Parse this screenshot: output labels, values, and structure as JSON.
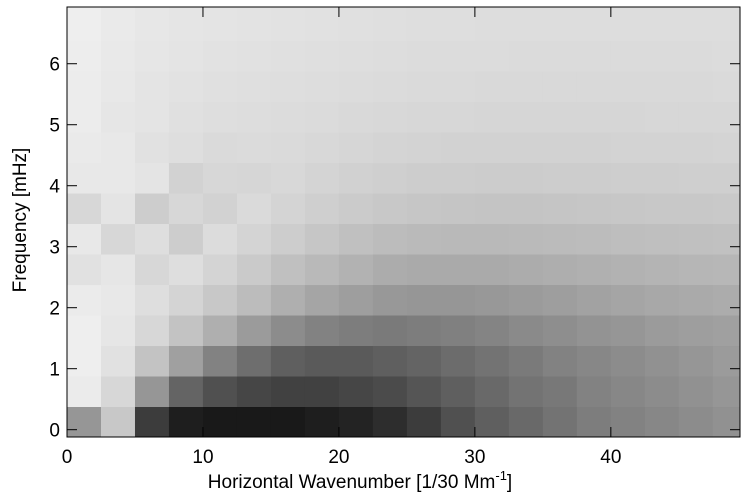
{
  "chart_data": {
    "type": "heatmap",
    "xlabel": [
      "Horizontal Wavenumber [1/30 Mm",
      "-1",
      "]"
    ],
    "ylabel": "Frequency [mHz]",
    "xlim": [
      0,
      49.5
    ],
    "ylim": [
      -0.12,
      6.93
    ],
    "xticks": [
      0,
      10,
      20,
      30,
      40
    ],
    "yticks": [
      0,
      1,
      2,
      3,
      4,
      5,
      6
    ],
    "x_bins": [
      0,
      2.5,
      5,
      7.5,
      10,
      12.5,
      15,
      17.5,
      20,
      22.5,
      25,
      27.5,
      30,
      32.5,
      35,
      37.5,
      40,
      42.5,
      45,
      47.5,
      49.5
    ],
    "y_bins": [
      -0.12,
      0.38,
      0.88,
      1.38,
      1.88,
      2.38,
      2.88,
      3.38,
      3.88,
      4.38,
      4.88,
      5.38,
      5.88,
      6.38,
      6.93
    ],
    "values": [
      [
        150,
        200,
        60,
        30,
        25,
        25,
        25,
        30,
        35,
        45,
        60,
        80,
        95,
        105,
        115,
        125,
        130,
        135,
        140,
        145
      ],
      [
        235,
        215,
        150,
        100,
        80,
        70,
        65,
        65,
        70,
        75,
        85,
        95,
        105,
        115,
        120,
        130,
        135,
        140,
        145,
        150
      ],
      [
        238,
        225,
        195,
        160,
        130,
        110,
        95,
        90,
        90,
        95,
        100,
        108,
        115,
        122,
        130,
        135,
        140,
        145,
        150,
        155
      ],
      [
        238,
        230,
        215,
        195,
        175,
        155,
        140,
        130,
        125,
        122,
        125,
        128,
        132,
        138,
        142,
        147,
        150,
        155,
        158,
        160
      ],
      [
        235,
        232,
        222,
        212,
        200,
        188,
        175,
        165,
        158,
        152,
        150,
        150,
        152,
        155,
        158,
        162,
        165,
        168,
        170,
        172
      ],
      [
        225,
        230,
        215,
        222,
        212,
        202,
        192,
        185,
        178,
        172,
        170,
        170,
        170,
        172,
        174,
        176,
        178,
        180,
        182,
        183
      ],
      [
        232,
        215,
        222,
        205,
        220,
        212,
        205,
        198,
        192,
        188,
        186,
        185,
        185,
        186,
        187,
        188,
        190,
        191,
        192,
        193
      ],
      [
        215,
        228,
        205,
        215,
        210,
        218,
        212,
        207,
        203,
        200,
        198,
        197,
        196,
        196,
        197,
        198,
        199,
        200,
        200,
        201
      ],
      [
        232,
        232,
        228,
        210,
        215,
        214,
        216,
        212,
        209,
        207,
        205,
        205,
        204,
        204,
        205,
        205,
        206,
        206,
        207,
        207
      ],
      [
        234,
        232,
        225,
        222,
        218,
        219,
        218,
        216,
        214,
        212,
        211,
        210,
        210,
        210,
        210,
        210,
        211,
        211,
        211,
        212
      ],
      [
        236,
        230,
        228,
        224,
        222,
        221,
        220,
        219,
        217,
        216,
        215,
        215,
        214,
        214,
        214,
        214,
        214,
        215,
        215,
        215
      ],
      [
        236,
        232,
        228,
        226,
        224,
        223,
        222,
        221,
        220,
        219,
        218,
        218,
        217,
        217,
        217,
        217,
        217,
        217,
        217,
        218
      ],
      [
        237,
        233,
        230,
        228,
        226,
        225,
        224,
        223,
        222,
        221,
        220,
        220,
        220,
        219,
        219,
        219,
        219,
        219,
        219,
        220
      ],
      [
        238,
        234,
        231,
        229,
        228,
        227,
        226,
        225,
        224,
        223,
        222,
        222,
        221,
        221,
        221,
        221,
        221,
        221,
        221,
        221
      ]
    ]
  }
}
